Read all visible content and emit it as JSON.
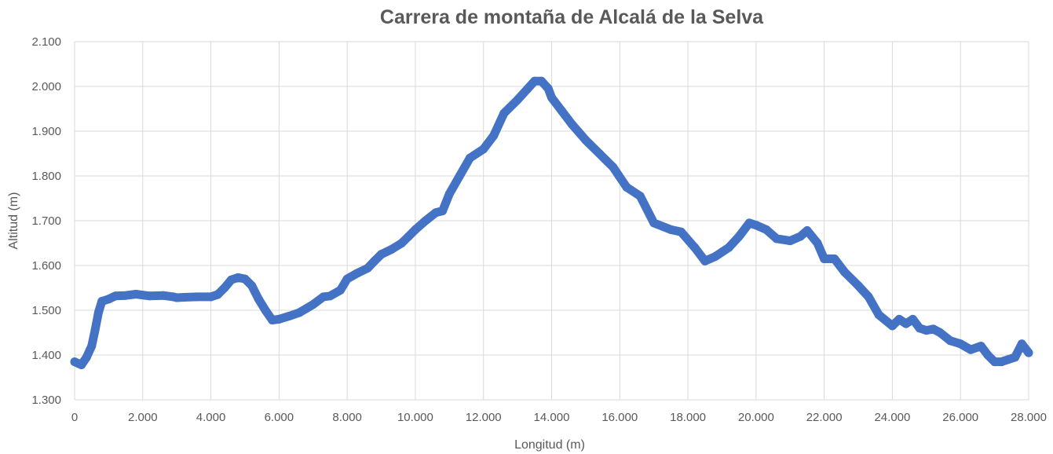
{
  "chart_data": {
    "type": "line",
    "title": "Carrera de montaña de Alcalá de la Selva",
    "xlabel": "Longitud (m)",
    "ylabel": "Altitud (m)",
    "xlim": [
      0,
      28000
    ],
    "ylim": [
      1300,
      2100
    ],
    "x_ticks": [
      0,
      2000,
      4000,
      6000,
      8000,
      10000,
      12000,
      14000,
      16000,
      18000,
      20000,
      22000,
      24000,
      26000,
      28000
    ],
    "x_tick_labels": [
      "0",
      "2.000",
      "4.000",
      "6.000",
      "8.000",
      "10.000",
      "12.000",
      "14.000",
      "16.000",
      "18.000",
      "20.000",
      "22.000",
      "24.000",
      "26.000",
      "28.000"
    ],
    "y_ticks": [
      1300,
      1400,
      1500,
      1600,
      1700,
      1800,
      1900,
      2000,
      2100
    ],
    "y_tick_labels": [
      "1.300",
      "1.400",
      "1.500",
      "1.600",
      "1.700",
      "1.800",
      "1.900",
      "2.000",
      "2.100"
    ],
    "grid": true,
    "legend": "none",
    "series": [
      {
        "color": "#4472c4",
        "x": [
          0,
          200,
          350,
          500,
          600,
          700,
          800,
          1000,
          1200,
          1500,
          1800,
          2200,
          2600,
          2900,
          3000,
          3200,
          3600,
          4000,
          4200,
          4400,
          4600,
          4800,
          5000,
          5200,
          5400,
          5600,
          5800,
          6000,
          6300,
          6600,
          7000,
          7300,
          7500,
          7800,
          8000,
          8300,
          8600,
          8800,
          9000,
          9300,
          9600,
          9800,
          10000,
          10300,
          10600,
          10800,
          11000,
          11300,
          11600,
          12000,
          12300,
          12600,
          13000,
          13300,
          13500,
          13700,
          13900,
          14000,
          14300,
          14600,
          15000,
          15400,
          15800,
          16200,
          16600,
          17000,
          17500,
          17800,
          18200,
          18500,
          18800,
          19200,
          19500,
          19800,
          20000,
          20300,
          20600,
          21000,
          21300,
          21500,
          21800,
          22000,
          22300,
          22600,
          23000,
          23300,
          23600,
          24000,
          24200,
          24400,
          24600,
          24800,
          25000,
          25200,
          25400,
          25700,
          26000,
          26300,
          26600,
          26800,
          27000,
          27200,
          27400,
          27600,
          27800,
          28000
        ],
        "values": [
          1385,
          1378,
          1395,
          1420,
          1455,
          1495,
          1520,
          1525,
          1532,
          1533,
          1536,
          1532,
          1533,
          1530,
          1528,
          1529,
          1530,
          1530,
          1535,
          1550,
          1568,
          1573,
          1570,
          1555,
          1525,
          1500,
          1478,
          1480,
          1487,
          1495,
          1513,
          1530,
          1532,
          1545,
          1570,
          1583,
          1594,
          1610,
          1625,
          1636,
          1650,
          1665,
          1680,
          1700,
          1718,
          1722,
          1760,
          1800,
          1840,
          1860,
          1890,
          1940,
          1970,
          1995,
          2012,
          2012,
          1995,
          1975,
          1945,
          1915,
          1880,
          1850,
          1820,
          1775,
          1755,
          1695,
          1680,
          1675,
          1640,
          1610,
          1620,
          1640,
          1665,
          1695,
          1690,
          1680,
          1660,
          1655,
          1665,
          1678,
          1650,
          1615,
          1615,
          1585,
          1555,
          1530,
          1490,
          1465,
          1480,
          1470,
          1480,
          1460,
          1455,
          1458,
          1450,
          1432,
          1425,
          1412,
          1420,
          1400,
          1385,
          1385,
          1390,
          1395,
          1425,
          1405
        ]
      }
    ]
  }
}
